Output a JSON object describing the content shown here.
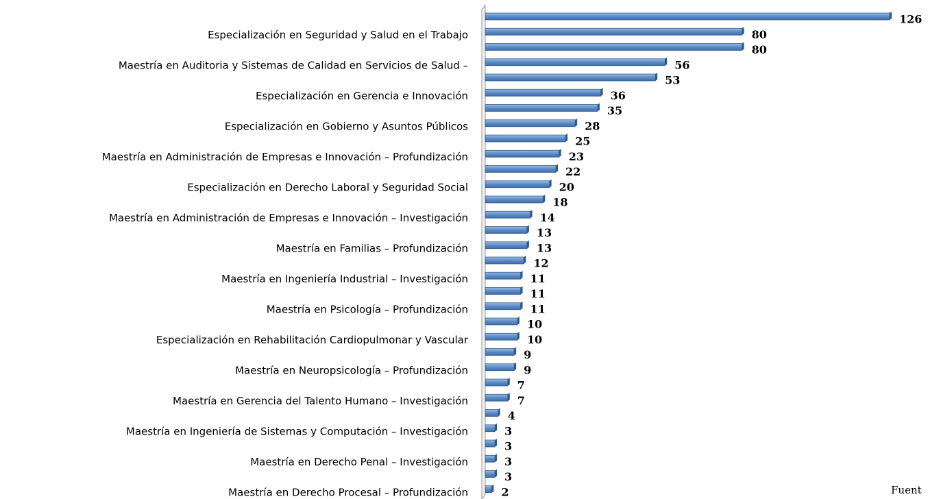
{
  "chart_data": {
    "type": "bar",
    "orientation": "horizontal",
    "color": "#4f81bd",
    "categories": [
      null,
      "Especialización en Seguridad y Salud en el Trabajo",
      null,
      "Maestría en Auditoria y Sistemas de Calidad en Servicios de Salud –",
      null,
      "Especialización en Gerencia e Innovación",
      null,
      "Especialización en Gobierno y Asuntos Públicos",
      null,
      "Maestría en Administración de Empresas e Innovación – Profundización",
      null,
      "Especialización en Derecho Laboral y Seguridad Social",
      null,
      "Maestría en Administración de Empresas e Innovación – Investigación",
      null,
      "Maestría en Familias – Profundización",
      null,
      "Maestría en Ingeniería Industrial – Investigación",
      null,
      "Maestría en Psicología – Profundización",
      null,
      "Especialización en Rehabilitación Cardiopulmonar y Vascular",
      null,
      "Maestría en Neuropsicología – Profundización",
      null,
      "Maestría en Gerencia del Talento Humano –  Investigación",
      null,
      "Maestría en Ingeniería de Sistemas y Computación – Investigación",
      null,
      "Maestría en Derecho Penal – Investigación",
      null,
      "Maestría en Derecho Procesal – Profundización"
    ],
    "values": [
      126,
      80,
      80,
      56,
      53,
      36,
      35,
      28,
      25,
      23,
      22,
      20,
      18,
      14,
      13,
      13,
      12,
      11,
      11,
      11,
      10,
      10,
      9,
      9,
      7,
      7,
      4,
      3,
      3,
      3,
      3,
      2
    ],
    "note": "Fuent"
  }
}
